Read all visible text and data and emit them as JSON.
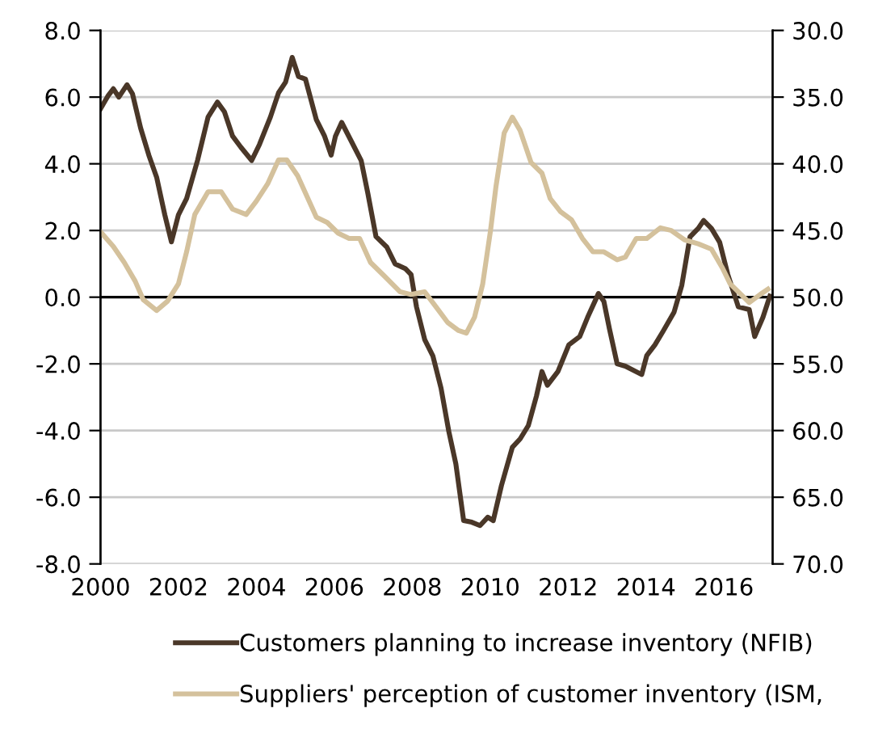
{
  "chart_data": {
    "type": "line",
    "xlim": [
      2000,
      2017.25
    ],
    "xticks": [
      2000,
      2002,
      2004,
      2006,
      2008,
      2010,
      2012,
      2014,
      2016
    ],
    "ylim": [
      -8,
      8
    ],
    "yticks": [
      {
        "value": -8,
        "label": "-8.0"
      },
      {
        "value": -6,
        "label": "-6.0"
      },
      {
        "value": -4,
        "label": "-4.0"
      },
      {
        "value": -2,
        "label": "-2.0"
      },
      {
        "value": 0,
        "label": "0.0"
      },
      {
        "value": 2,
        "label": "2.0"
      },
      {
        "value": 4,
        "label": "4.0"
      },
      {
        "value": 6,
        "label": "6.0"
      },
      {
        "value": 8,
        "label": "8.0"
      }
    ],
    "y2lim": [
      70,
      30
    ],
    "y2ticks": [
      {
        "value": 30,
        "label": "30.0"
      },
      {
        "value": 35,
        "label": "35.0"
      },
      {
        "value": 40,
        "label": "40.0"
      },
      {
        "value": 45,
        "label": "45.0"
      },
      {
        "value": 50,
        "label": "50.0"
      },
      {
        "value": 55,
        "label": "55.0"
      },
      {
        "value": 60,
        "label": "60.0"
      },
      {
        "value": 65,
        "label": "65.0"
      },
      {
        "value": 70,
        "label": "70.0"
      }
    ],
    "grid": "y",
    "legend": "bottom",
    "marker": "none",
    "line_style": "solid",
    "ref_lines": [
      {
        "axis": "y",
        "value": 0,
        "color": "#000000"
      }
    ],
    "series": [
      {
        "name": "Customers planning to increase inventory (NFIB)",
        "color": "#4a3728",
        "x": [
          2000,
          2000.2,
          2000.33,
          2000.47,
          2000.68,
          2000.82,
          2001.03,
          2001.24,
          2001.44,
          2001.65,
          2001.82,
          2002.0,
          2002.21,
          2002.49,
          2002.76,
          2003.0,
          2003.18,
          2003.39,
          2003.6,
          2003.88,
          2004.08,
          2004.36,
          2004.57,
          2004.75,
          2004.92,
          2005.08,
          2005.26,
          2005.54,
          2005.75,
          2005.92,
          2006.03,
          2006.19,
          2006.44,
          2006.69,
          2006.86,
          2007.07,
          2007.35,
          2007.56,
          2007.83,
          2007.97,
          2008.11,
          2008.32,
          2008.53,
          2008.74,
          2008.94,
          2009.12,
          2009.32,
          2009.53,
          2009.74,
          2009.94,
          2010.08,
          2010.29,
          2010.57,
          2010.77,
          2010.98,
          2011.19,
          2011.33,
          2011.47,
          2011.74,
          2012.02,
          2012.3,
          2012.5,
          2012.78,
          2012.92,
          2013.06,
          2013.26,
          2013.47,
          2013.89,
          2014.02,
          2014.23,
          2014.44,
          2014.72,
          2014.92,
          2015.13,
          2015.34,
          2015.48,
          2015.68,
          2015.89,
          2016.1,
          2016.37,
          2016.65,
          2016.79,
          2017.0,
          2017.18
        ],
        "values": [
          5.65,
          6.05,
          6.25,
          6.0,
          6.37,
          6.1,
          5.07,
          4.26,
          3.6,
          2.47,
          1.66,
          2.47,
          2.96,
          4.1,
          5.4,
          5.85,
          5.56,
          4.83,
          4.5,
          4.1,
          4.58,
          5.4,
          6.13,
          6.45,
          7.19,
          6.62,
          6.54,
          5.32,
          4.83,
          4.26,
          4.83,
          5.24,
          4.67,
          4.1,
          3.12,
          1.82,
          1.5,
          1.0,
          0.85,
          0.68,
          -0.29,
          -1.27,
          -1.76,
          -2.73,
          -4.03,
          -5.0,
          -6.7,
          -6.75,
          -6.85,
          -6.6,
          -6.7,
          -5.65,
          -4.5,
          -4.25,
          -3.85,
          -2.96,
          -2.23,
          -2.64,
          -2.23,
          -1.43,
          -1.18,
          -0.61,
          0.11,
          -0.13,
          -0.94,
          -2.0,
          -2.07,
          -2.32,
          -1.75,
          -1.43,
          -1.02,
          -0.45,
          0.36,
          1.81,
          2.06,
          2.3,
          2.06,
          1.65,
          0.68,
          -0.29,
          -0.37,
          -1.18,
          -0.61,
          0.03
        ]
      },
      {
        "name": "Suppliers' perception of customer inventory (ISM,",
        "color": "#d4c19c",
        "axis": "y2",
        "x": [
          2000,
          2000.33,
          2000.61,
          2000.89,
          2001.1,
          2001.44,
          2001.72,
          2002.0,
          2002.21,
          2002.42,
          2002.76,
          2003.1,
          2003.39,
          2003.74,
          2004.0,
          2004.29,
          2004.57,
          2004.78,
          2005.06,
          2005.54,
          2005.82,
          2006.1,
          2006.38,
          2006.65,
          2006.93,
          2007.28,
          2007.69,
          2007.97,
          2008.32,
          2008.63,
          2008.91,
          2009.19,
          2009.39,
          2009.6,
          2009.81,
          2010.01,
          2010.15,
          2010.36,
          2010.57,
          2010.77,
          2011.05,
          2011.33,
          2011.54,
          2011.81,
          2012.09,
          2012.37,
          2012.64,
          2012.92,
          2013.26,
          2013.47,
          2013.75,
          2014.02,
          2014.37,
          2014.65,
          2014.99,
          2015.34,
          2015.68,
          2015.96,
          2016.16,
          2016.44,
          2016.65,
          2016.93,
          2017.13
        ],
        "values": [
          45.1,
          46.2,
          47.4,
          48.8,
          50.2,
          51.0,
          50.3,
          49.0,
          46.6,
          43.8,
          42.1,
          42.1,
          43.4,
          43.8,
          42.8,
          41.5,
          39.7,
          39.7,
          40.9,
          44.0,
          44.4,
          45.2,
          45.6,
          45.6,
          47.4,
          48.4,
          49.6,
          49.8,
          49.6,
          50.8,
          51.9,
          52.5,
          52.7,
          51.5,
          49.0,
          45.0,
          41.7,
          37.7,
          36.5,
          37.5,
          39.9,
          40.7,
          42.6,
          43.6,
          44.2,
          45.6,
          46.6,
          46.6,
          47.2,
          47.0,
          45.6,
          45.6,
          44.8,
          45.0,
          45.7,
          46.0,
          46.4,
          47.8,
          49.0,
          49.8,
          50.4,
          49.8,
          49.4
        ]
      }
    ]
  }
}
